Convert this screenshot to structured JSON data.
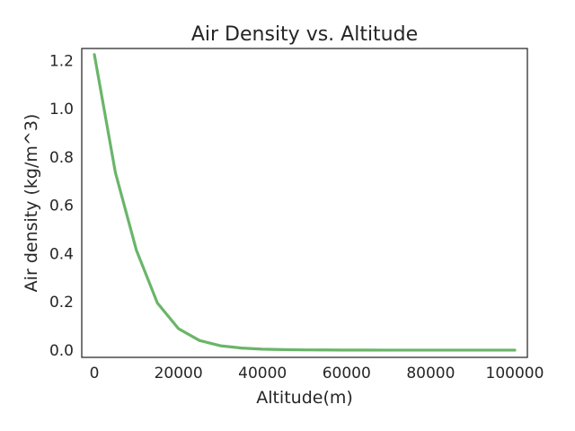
{
  "chart_data": {
    "type": "line",
    "title": "Air Density vs. Altitude",
    "xlabel": "Altitude(m)",
    "ylabel": "Air density (kg/m^3)",
    "xlim": [
      -3000,
      103000
    ],
    "ylim": [
      -0.03,
      1.25
    ],
    "xticks": [
      0,
      20000,
      40000,
      60000,
      80000,
      100000
    ],
    "xtick_labels": [
      "0",
      "20000",
      "40000",
      "60000",
      "80000",
      "100000"
    ],
    "yticks": [
      0.0,
      0.2,
      0.4,
      0.6,
      0.8,
      1.0,
      1.2
    ],
    "ytick_labels": [
      "0.0",
      "0.2",
      "0.4",
      "0.6",
      "0.8",
      "1.0",
      "1.2"
    ],
    "grid": false,
    "series": [
      {
        "color": "#6ab56a",
        "x": [
          0,
          5000,
          10000,
          15000,
          20000,
          25000,
          30000,
          35000,
          40000,
          45000,
          50000,
          55000,
          60000,
          65000,
          70000,
          75000,
          80000,
          85000,
          90000,
          95000,
          100000
        ],
        "y": [
          1.225,
          0.736,
          0.414,
          0.195,
          0.089,
          0.04,
          0.018,
          0.0085,
          0.004,
          0.002,
          0.001,
          0.0006,
          0.0003,
          0.00016,
          8e-05,
          4e-05,
          2e-05,
          1e-05,
          5e-06,
          3e-06,
          6e-07
        ]
      }
    ]
  }
}
